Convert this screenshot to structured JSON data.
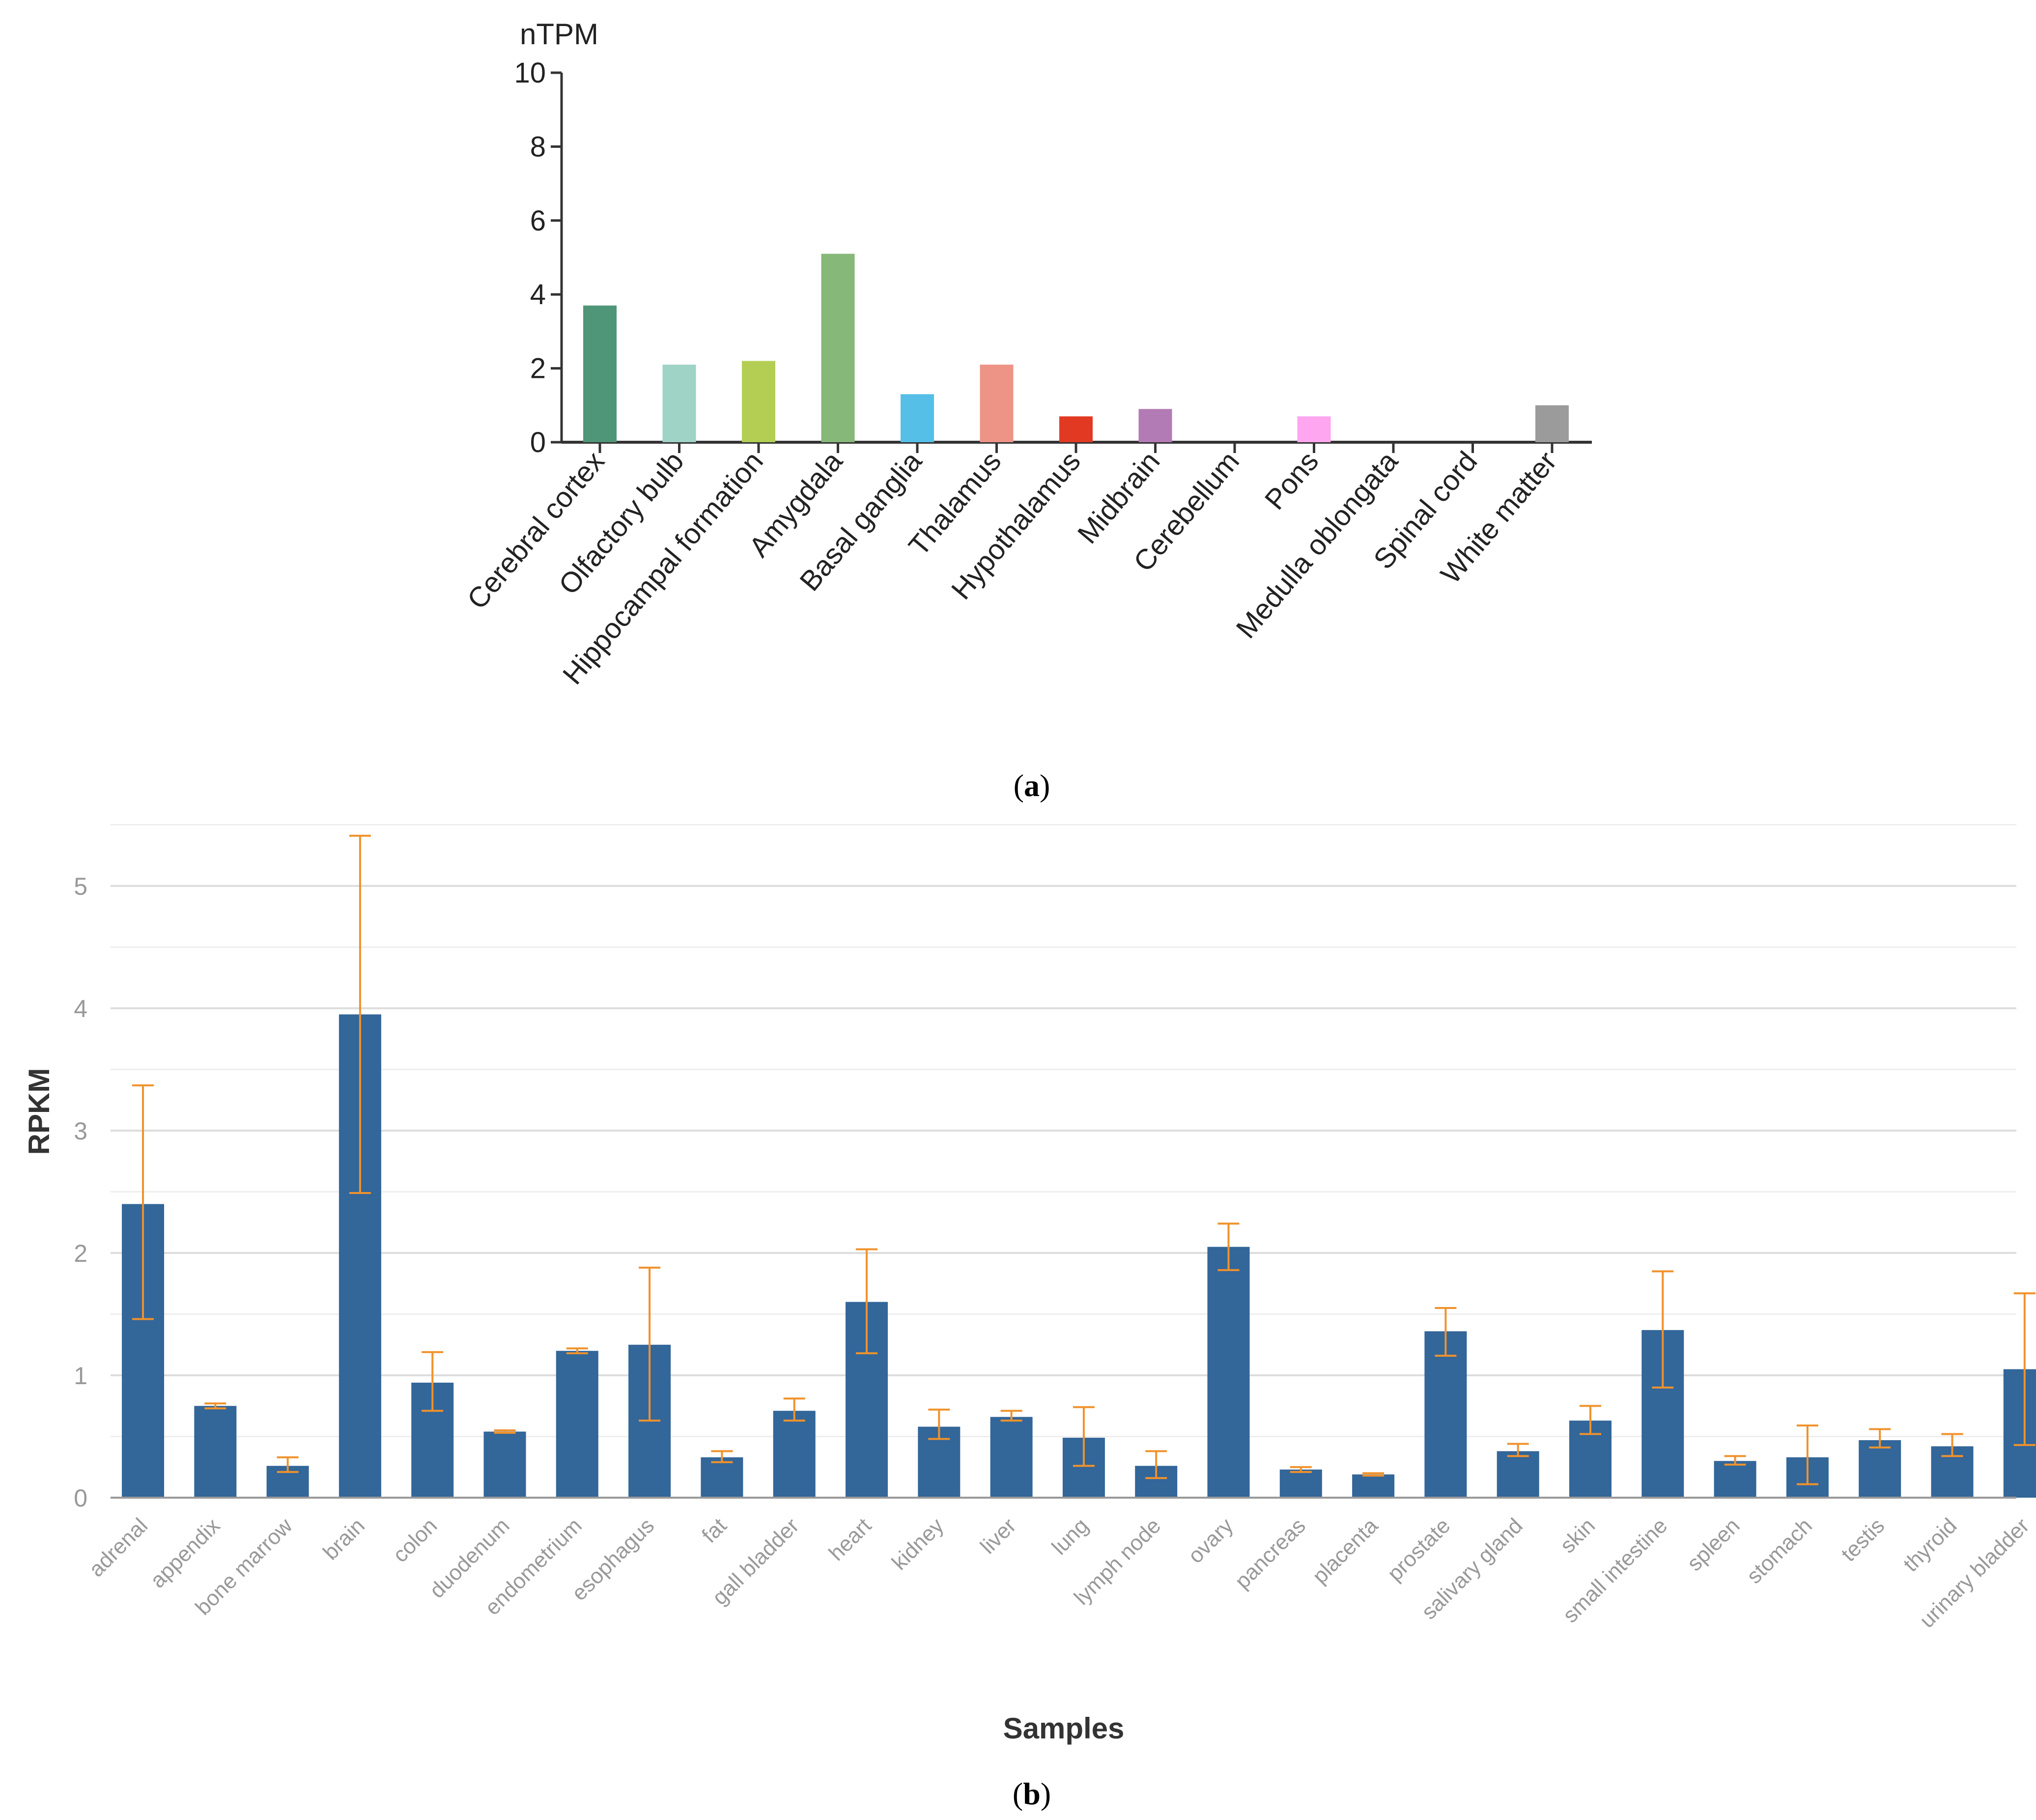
{
  "colors": {
    "axis_a": "#333333",
    "text_a": "#222222",
    "bar_b": "#336699",
    "error_b": "#f0922c",
    "grid_b": "#dddddd",
    "tick_text_b": "#999999",
    "axis_title_b": "#333333",
    "axis_line_b": "#999999"
  },
  "captions": {
    "a_letter": "a",
    "b_letter": "b",
    "open": "(",
    "close": ")"
  },
  "chart_data": [
    {
      "type": "bar",
      "panel": "a",
      "title": "",
      "ylabel": "nTPM",
      "xlabel": "",
      "ylim": [
        0,
        10
      ],
      "yticks": [
        0,
        2,
        4,
        6,
        8,
        10
      ],
      "ytick_labels": [
        "0",
        "2",
        "4",
        "6",
        "8",
        "10"
      ],
      "grid": false,
      "categories": [
        "Cerebral cortex",
        "Olfactory bulb",
        "Hippocampal formation",
        "Amygdala",
        "Basal ganglia",
        "Thalamus",
        "Hypothalamus",
        "Midbrain",
        "Cerebellum",
        "Pons",
        "Medulla oblongata",
        "Spinal cord",
        "White matter"
      ],
      "values": [
        3.7,
        2.1,
        2.2,
        5.1,
        1.3,
        2.1,
        0.7,
        0.9,
        0,
        0.7,
        0,
        0,
        1.0
      ],
      "bar_colors": [
        "#4f9577",
        "#9ed3c6",
        "#b3ce53",
        "#86b87a",
        "#55bfe8",
        "#ed9487",
        "#e23a22",
        "#b37bb5",
        "#cccccc",
        "#ffa6f0",
        "#cccccc",
        "#cccccc",
        "#9b9b9b"
      ]
    },
    {
      "type": "bar",
      "panel": "b",
      "title": "",
      "ylabel": "RPKM",
      "xlabel": "Samples",
      "ylim": [
        0,
        5.5
      ],
      "yticks": [
        0,
        1,
        2,
        3,
        4,
        5
      ],
      "ytick_labels": [
        "0",
        "1",
        "2",
        "3",
        "4",
        "5"
      ],
      "grid": true,
      "grid_minor": [
        0.5,
        1.5,
        2.5,
        3.5,
        4.5,
        5.5
      ],
      "categories": [
        "adrenal",
        "appendix",
        "bone marrow",
        "brain",
        "colon",
        "duodenum",
        "endometrium",
        "esophagus",
        "fat",
        "gall bladder",
        "heart",
        "kidney",
        "liver",
        "lung",
        "lymph node",
        "ovary",
        "pancreas",
        "placenta",
        "prostate",
        "salivary gland",
        "skin",
        "small intestine",
        "spleen",
        "stomach",
        "testis",
        "thyroid",
        "urinary bladder"
      ],
      "values": [
        2.4,
        0.75,
        0.26,
        3.95,
        0.94,
        0.54,
        1.2,
        1.25,
        0.33,
        0.71,
        1.6,
        0.58,
        0.66,
        0.49,
        0.26,
        2.05,
        0.23,
        0.19,
        1.36,
        0.38,
        0.63,
        1.37,
        0.3,
        0.33,
        0.47,
        0.42,
        1.05
      ],
      "error_low": [
        1.46,
        0.73,
        0.21,
        2.49,
        0.71,
        0.53,
        1.18,
        0.63,
        0.29,
        0.63,
        1.18,
        0.48,
        0.63,
        0.26,
        0.16,
        1.86,
        0.21,
        0.18,
        1.16,
        0.34,
        0.52,
        0.9,
        0.27,
        0.11,
        0.41,
        0.34,
        0.43
      ],
      "error_high": [
        3.37,
        0.77,
        0.33,
        5.41,
        1.19,
        0.55,
        1.22,
        1.88,
        0.38,
        0.81,
        2.03,
        0.72,
        0.71,
        0.74,
        0.38,
        2.24,
        0.25,
        0.2,
        1.55,
        0.44,
        0.75,
        1.85,
        0.34,
        0.59,
        0.56,
        0.52,
        1.67
      ]
    }
  ]
}
